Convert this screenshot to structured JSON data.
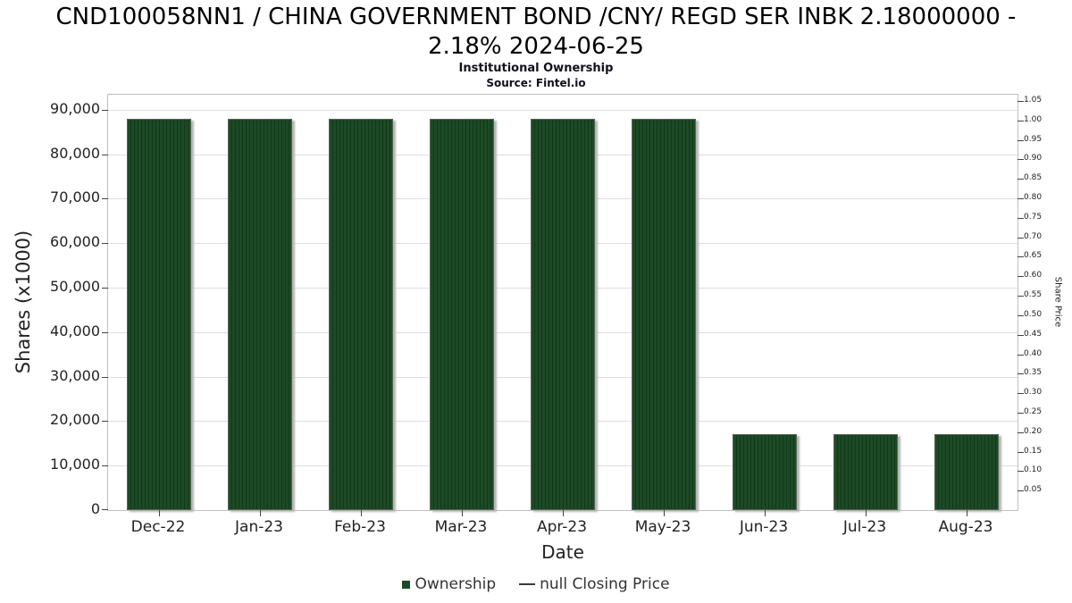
{
  "chart_data": {
    "type": "bar",
    "title": "CND100058NN1 / CHINA GOVERNMENT BOND /CNY/ REGD SER INBK 2.18000000 - 2.18% 2024-06-25",
    "subtitle": "Institutional Ownership",
    "source": "Source: Fintel.io",
    "xlabel": "Date",
    "ylabel": "Shares (x1000)",
    "y2label": "Share Price",
    "categories": [
      "Dec-22",
      "Jan-23",
      "Feb-23",
      "Mar-23",
      "Apr-23",
      "May-23",
      "Jun-23",
      "Jul-23",
      "Aug-23"
    ],
    "values": [
      88000,
      88000,
      88000,
      88000,
      88000,
      88000,
      17000,
      17000,
      17000
    ],
    "ylim": [
      0,
      93400
    ],
    "y_ticks": [
      0,
      10000,
      20000,
      30000,
      40000,
      50000,
      60000,
      70000,
      80000,
      90000
    ],
    "y2lim": [
      0,
      1.066
    ],
    "y2_ticks": [
      1.05,
      1.0,
      0.95,
      0.9,
      0.85,
      0.8,
      0.75,
      0.7,
      0.65,
      0.6,
      0.55,
      0.5,
      0.45,
      0.4,
      0.35,
      0.3,
      0.25,
      0.2,
      0.15,
      0.1,
      0.05
    ],
    "grid": "horizontal",
    "legend_position": "bottom",
    "bar_color": "#1d4a26",
    "bar_hatch_color": "#123818",
    "legend": [
      {
        "label": "Ownership"
      },
      {
        "label": "null Closing Price"
      }
    ]
  }
}
